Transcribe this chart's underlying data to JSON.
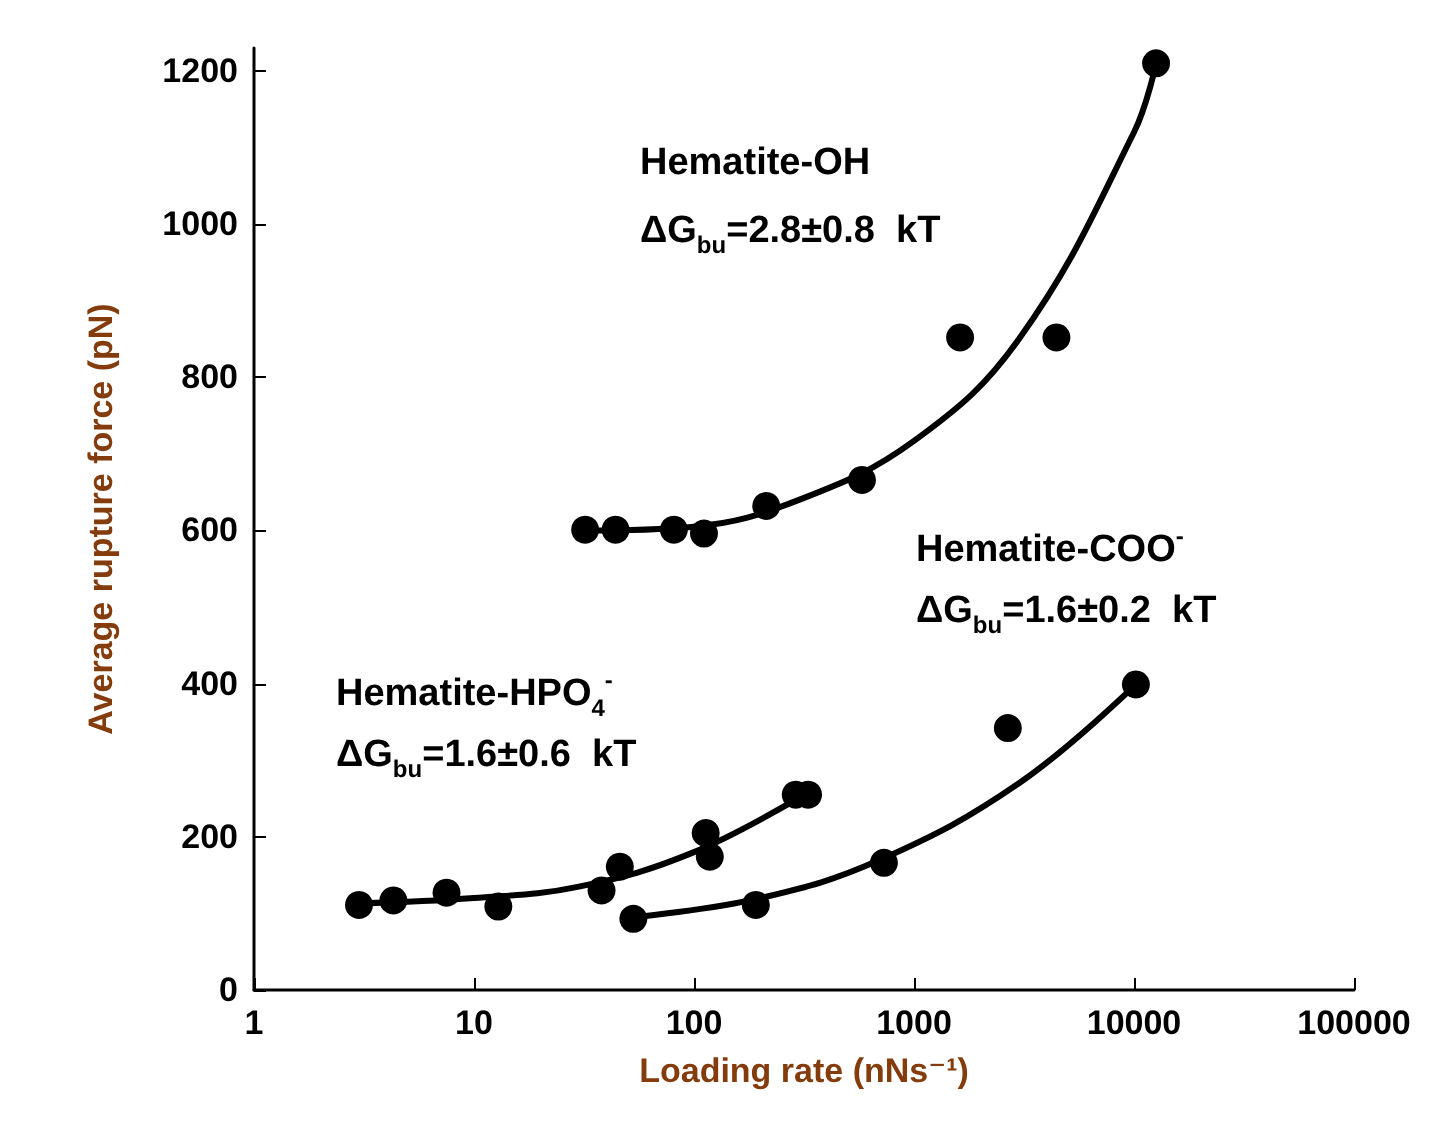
{
  "chart_data": {
    "type": "scatter",
    "xlabel": "Loading rate (nNs⁻¹)",
    "ylabel": "Average rupture force (pN)",
    "annotations": [
      "Hematite-OH",
      "ΔG$_{bu}$=2.8±0.8  kT",
      "Hematite-HPO$_{4}$$^{-}$",
      "ΔG$_{bu}$=1.6±0.6  kT",
      "Hematite-COO$^{-}$",
      "ΔG$_{bu}$=1.6±0.2  kT"
    ],
    "series": [
      {
        "color": "#000000",
        "x": [
          32,
          44,
          81,
          111,
          213,
          580,
          1620,
          4440,
          12600
        ],
        "values": [
          601,
          601,
          601,
          596,
          632,
          666,
          852,
          852,
          1210
        ]
      },
      {
        "color": "#000000",
        "x": [
          3.0,
          4.3,
          7.5,
          12.9,
          38,
          46,
          113,
          118,
          290,
          330
        ],
        "values": [
          111,
          117,
          127,
          109,
          130,
          161,
          205,
          174,
          255,
          255
        ]
      },
      {
        "color": "#000000",
        "x": [
          53,
          191,
          730,
          2670,
          10200
        ],
        "values": [
          93,
          111,
          166,
          342,
          399
        ]
      },
      {
        "type": "line",
        "color": "#000000",
        "marker": "none",
        "x": [
          32,
          100,
          300,
          1000,
          3000,
          10000,
          12600
        ],
        "values": [
          600,
          605,
          640,
          717,
          850,
          1120,
          1210
        ]
      },
      {
        "type": "line",
        "color": "#000000",
        "marker": "none",
        "x": [
          3,
          10,
          30,
          100,
          330
        ],
        "values": [
          113,
          120,
          135,
          180,
          258
        ]
      },
      {
        "type": "line",
        "color": "#000000",
        "marker": "none",
        "x": [
          53,
          200,
          700,
          3000,
          10200
        ],
        "values": [
          95,
          120,
          170,
          270,
          399
        ]
      }
    ],
    "xlim": [
      1,
      100000
    ],
    "xticks": [
      1,
      10,
      100,
      1000,
      10000,
      100000
    ],
    "ylim": [
      0,
      1230
    ],
    "yticks": [
      0,
      200,
      400,
      600,
      800,
      1000,
      1200
    ],
    "log": "x",
    "grid": false,
    "marker": "circle",
    "line_style": "solid"
  }
}
